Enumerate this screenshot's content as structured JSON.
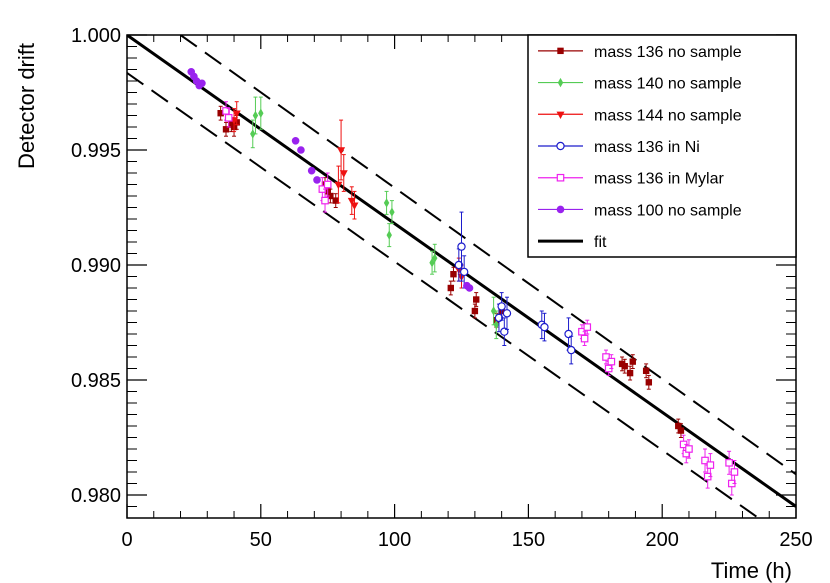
{
  "chart_data": {
    "type": "scatter",
    "title": "",
    "xlabel": "Time (h)",
    "ylabel": "Detector drift",
    "xlim": [
      0,
      250
    ],
    "ylim": [
      0.979,
      1.0
    ],
    "x_ticks": [
      0,
      50,
      100,
      150,
      200,
      250
    ],
    "x_tick_labels": [
      "0",
      "50",
      "100",
      "150",
      "200",
      "250"
    ],
    "y_ticks": [
      0.98,
      0.985,
      0.99,
      0.995,
      1.0
    ],
    "y_tick_labels": [
      "0.980",
      "0.985",
      "0.990",
      "0.995",
      "1.000"
    ],
    "legend_position": "top-right",
    "series": [
      {
        "name": "mass 136 no sample",
        "color": "#990000",
        "marker": "square",
        "points": [
          [
            35,
            0.9966,
            0.0003
          ],
          [
            37,
            0.9959,
            0.0003
          ],
          [
            39,
            0.9961,
            0.0003
          ],
          [
            40,
            0.996,
            0.0004
          ],
          [
            41,
            0.9962,
            0.0003
          ],
          [
            74,
            0.9935,
            0.0003
          ],
          [
            75,
            0.9932,
            0.0003
          ],
          [
            76,
            0.993,
            0.0003
          ],
          [
            78,
            0.9928,
            0.0003
          ],
          [
            121,
            0.989,
            0.0003
          ],
          [
            122,
            0.9896,
            0.0003
          ],
          [
            130,
            0.988,
            0.0003
          ],
          [
            130.5,
            0.9885,
            0.0003
          ],
          [
            138,
            0.9876,
            0.0003
          ],
          [
            140,
            0.988,
            0.0003
          ],
          [
            185,
            0.9857,
            0.0003
          ],
          [
            186,
            0.9856,
            0.0003
          ],
          [
            188,
            0.9853,
            0.0003
          ],
          [
            189,
            0.9858,
            0.0003
          ],
          [
            194,
            0.9854,
            0.0003
          ],
          [
            195,
            0.9849,
            0.0003
          ],
          [
            206,
            0.983,
            0.0003
          ],
          [
            207,
            0.9828,
            0.0003
          ]
        ]
      },
      {
        "name": "mass 140 no sample",
        "color": "#55cc55",
        "marker": "diamond",
        "points": [
          [
            47,
            0.9957,
            0.0006
          ],
          [
            48,
            0.9965,
            0.0008
          ],
          [
            50,
            0.9966,
            0.0007
          ],
          [
            97,
            0.9927,
            0.0005
          ],
          [
            98,
            0.9913,
            0.0005
          ],
          [
            99,
            0.9923,
            0.0005
          ],
          [
            114,
            0.9901,
            0.0005
          ],
          [
            115,
            0.9903,
            0.0006
          ],
          [
            137,
            0.988,
            0.0006
          ],
          [
            138,
            0.9874,
            0.0006
          ]
        ]
      },
      {
        "name": "mass 144 no sample",
        "color": "#ee1111",
        "marker": "triangle-down",
        "points": [
          [
            40,
            0.9963,
            0.0005
          ],
          [
            41,
            0.9966,
            0.0005
          ],
          [
            79,
            0.9935,
            0.0008
          ],
          [
            80,
            0.995,
            0.0013
          ],
          [
            81,
            0.994,
            0.0008
          ],
          [
            84,
            0.9928,
            0.0006
          ],
          [
            85,
            0.9926,
            0.0006
          ],
          [
            124,
            0.9898,
            0.0005
          ],
          [
            125,
            0.9895,
            0.0005
          ]
        ]
      },
      {
        "name": "mass 136 in Ni",
        "color": "#1c1ccc",
        "marker": "circle-open",
        "points": [
          [
            124,
            0.99,
            0.0007
          ],
          [
            125,
            0.9908,
            0.0015
          ],
          [
            126,
            0.9897,
            0.0007
          ],
          [
            139,
            0.9877,
            0.0006
          ],
          [
            140,
            0.9882,
            0.0006
          ],
          [
            141,
            0.9871,
            0.0006
          ],
          [
            142,
            0.9879,
            0.0007
          ],
          [
            155,
            0.9874,
            0.0006
          ],
          [
            156,
            0.9873,
            0.0006
          ],
          [
            165,
            0.987,
            0.0007
          ],
          [
            166,
            0.9863,
            0.0006
          ]
        ]
      },
      {
        "name": "mass 136 in Mylar",
        "color": "#ee22ee",
        "marker": "square-open",
        "points": [
          [
            37,
            0.9967,
            0.0004
          ],
          [
            38,
            0.9964,
            0.0004
          ],
          [
            73,
            0.9933,
            0.0005
          ],
          [
            74,
            0.9928,
            0.0005
          ],
          [
            75,
            0.9935,
            0.0005
          ],
          [
            170,
            0.9871,
            0.0003
          ],
          [
            171,
            0.9868,
            0.0003
          ],
          [
            172,
            0.9873,
            0.0003
          ],
          [
            179,
            0.986,
            0.0003
          ],
          [
            180,
            0.9855,
            0.0003
          ],
          [
            181,
            0.9858,
            0.0003
          ],
          [
            208,
            0.9822,
            0.0004
          ],
          [
            209,
            0.9818,
            0.0004
          ],
          [
            210,
            0.982,
            0.0004
          ],
          [
            216,
            0.9815,
            0.0005
          ],
          [
            217,
            0.9808,
            0.0005
          ],
          [
            218,
            0.9813,
            0.0005
          ],
          [
            225,
            0.9814,
            0.0005
          ],
          [
            226,
            0.9805,
            0.0005
          ],
          [
            227,
            0.981,
            0.0005
          ]
        ]
      },
      {
        "name": "mass 100 no sample",
        "color": "#9922ee",
        "marker": "circle",
        "points": [
          [
            24,
            0.9984,
            0.0001
          ],
          [
            25,
            0.9982,
            0.0001
          ],
          [
            26,
            0.998,
            0.0001
          ],
          [
            27,
            0.9978,
            0.0001
          ],
          [
            28,
            0.9979,
            0.0001
          ],
          [
            63,
            0.9954,
            0.0001
          ],
          [
            65,
            0.995,
            0.0001
          ],
          [
            69,
            0.9941,
            0.0001
          ],
          [
            71,
            0.9937,
            0.0001
          ],
          [
            127,
            0.9891,
            0.0001
          ],
          [
            128,
            0.989,
            0.0001
          ]
        ]
      }
    ],
    "fit": {
      "name": "fit",
      "color": "#000000",
      "line": {
        "x0": 0,
        "y0": 1.0,
        "x1": 250,
        "y1": 0.9795
      },
      "bands": [
        {
          "x0": 0,
          "y0": 0.99835,
          "x1": 250,
          "y1": 0.97785
        },
        {
          "x0": 20,
          "y0": 1.0,
          "x1": 250,
          "y1": 0.9809
        }
      ]
    }
  }
}
